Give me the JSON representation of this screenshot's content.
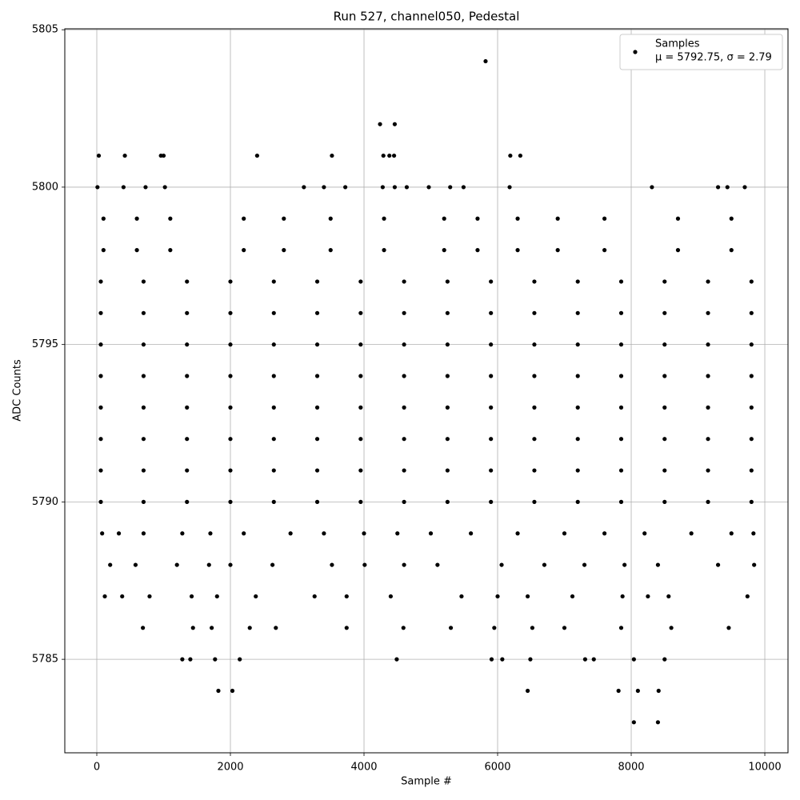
{
  "chart_data": {
    "type": "scatter",
    "title": "Run 527, channel050, Pedestal",
    "x_label": "Sample #",
    "y_label": "ADC Counts",
    "xlim": [
      -479,
      10347
    ],
    "ylim": [
      5782.03,
      5805.03
    ],
    "xticks": [
      0,
      2000,
      4000,
      6000,
      8000,
      10000
    ],
    "yticks": [
      5785,
      5790,
      5795,
      5800,
      5805
    ],
    "grid": true,
    "legend_position": "upper right",
    "legend_stats": "μ = 5792.75, σ = 2.79",
    "x": [
      5820,
      4240,
      4460,
      30,
      420,
      960,
      1000,
      2400,
      3520,
      4290,
      4380,
      4450,
      6190,
      6340,
      10,
      400,
      730,
      1020,
      3100,
      3400,
      3720,
      4280,
      4460,
      4640,
      4970,
      5290,
      5490,
      6180,
      8310,
      9300,
      9440,
      9700,
      100,
      600,
      1100,
      2200,
      2800,
      3500,
      4300,
      5200,
      5700,
      6300,
      6900,
      7600,
      8700,
      9500,
      100,
      600,
      1100,
      2200,
      2800,
      3500,
      4300,
      5200,
      5700,
      6300,
      6900,
      7600,
      8700,
      9500,
      60,
      700,
      1350,
      2000,
      2650,
      3300,
      3950,
      4600,
      5250,
      5900,
      6550,
      7200,
      7850,
      8500,
      9150,
      9800,
      60,
      700,
      1350,
      2000,
      2650,
      3300,
      3950,
      4600,
      5250,
      5900,
      6550,
      7200,
      7850,
      8500,
      9150,
      9800,
      60,
      700,
      1350,
      2000,
      2650,
      3300,
      3950,
      4600,
      5250,
      5900,
      6550,
      7200,
      7850,
      8500,
      9150,
      9800,
      60,
      700,
      1350,
      2000,
      2650,
      3300,
      3950,
      4600,
      5250,
      5900,
      6550,
      7200,
      7850,
      8500,
      9150,
      9800,
      60,
      700,
      1350,
      2000,
      2650,
      3300,
      3950,
      4600,
      5250,
      5900,
      6550,
      7200,
      7850,
      8500,
      9150,
      9800,
      60,
      700,
      1350,
      2000,
      2650,
      3300,
      3950,
      4600,
      5250,
      5900,
      6550,
      7200,
      7850,
      8500,
      9150,
      9800,
      60,
      700,
      1350,
      2000,
      2650,
      3300,
      3950,
      4600,
      5250,
      5900,
      6550,
      7200,
      7850,
      8500,
      9150,
      9800,
      60,
      700,
      1350,
      2000,
      2650,
      3300,
      3950,
      4600,
      5250,
      5900,
      6550,
      7200,
      7850,
      8500,
      9150,
      9800,
      80,
      330,
      700,
      1280,
      1700,
      2200,
      2900,
      3400,
      4000,
      4500,
      5000,
      5600,
      6300,
      7000,
      7600,
      8200,
      8900,
      9500,
      9830,
      200,
      580,
      1200,
      1680,
      2000,
      2630,
      3520,
      4010,
      4600,
      5100,
      6060,
      6700,
      7300,
      7900,
      8400,
      9300,
      9840,
      120,
      380,
      790,
      1420,
      1800,
      2380,
      3260,
      3740,
      4400,
      5460,
      6000,
      6450,
      7120,
      7870,
      8250,
      8560,
      9740,
      690,
      1440,
      1720,
      2290,
      2680,
      3740,
      4590,
      5300,
      5950,
      6520,
      7000,
      7850,
      8600,
      9460,
      1280,
      1400,
      1770,
      2140,
      4490,
      5910,
      6070,
      6490,
      7310,
      7440,
      8040,
      8500,
      1820,
      2030,
      6450,
      7810,
      8100,
      8410,
      8040,
      8400
    ],
    "series": [
      {
        "name": "Samples",
        "color": "#000000",
        "values": [
          5804,
          5802,
          5802,
          5801,
          5801,
          5801,
          5801,
          5801,
          5801,
          5801,
          5801,
          5801,
          5801,
          5801,
          5800,
          5800,
          5800,
          5800,
          5800,
          5800,
          5800,
          5800,
          5800,
          5800,
          5800,
          5800,
          5800,
          5800,
          5800,
          5800,
          5800,
          5800,
          5799,
          5799,
          5799,
          5799,
          5799,
          5799,
          5799,
          5799,
          5799,
          5799,
          5799,
          5799,
          5799,
          5799,
          5798,
          5798,
          5798,
          5798,
          5798,
          5798,
          5798,
          5798,
          5798,
          5798,
          5798,
          5798,
          5798,
          5798,
          5797,
          5797,
          5797,
          5797,
          5797,
          5797,
          5797,
          5797,
          5797,
          5797,
          5797,
          5797,
          5797,
          5797,
          5797,
          5797,
          5796,
          5796,
          5796,
          5796,
          5796,
          5796,
          5796,
          5796,
          5796,
          5796,
          5796,
          5796,
          5796,
          5796,
          5796,
          5796,
          5795,
          5795,
          5795,
          5795,
          5795,
          5795,
          5795,
          5795,
          5795,
          5795,
          5795,
          5795,
          5795,
          5795,
          5795,
          5795,
          5794,
          5794,
          5794,
          5794,
          5794,
          5794,
          5794,
          5794,
          5794,
          5794,
          5794,
          5794,
          5794,
          5794,
          5794,
          5794,
          5793,
          5793,
          5793,
          5793,
          5793,
          5793,
          5793,
          5793,
          5793,
          5793,
          5793,
          5793,
          5793,
          5793,
          5793,
          5793,
          5792,
          5792,
          5792,
          5792,
          5792,
          5792,
          5792,
          5792,
          5792,
          5792,
          5792,
          5792,
          5792,
          5792,
          5792,
          5792,
          5791,
          5791,
          5791,
          5791,
          5791,
          5791,
          5791,
          5791,
          5791,
          5791,
          5791,
          5791,
          5791,
          5791,
          5791,
          5791,
          5790,
          5790,
          5790,
          5790,
          5790,
          5790,
          5790,
          5790,
          5790,
          5790,
          5790,
          5790,
          5790,
          5790,
          5790,
          5790,
          5789,
          5789,
          5789,
          5789,
          5789,
          5789,
          5789,
          5789,
          5789,
          5789,
          5789,
          5789,
          5789,
          5789,
          5789,
          5789,
          5789,
          5789,
          5789,
          5788,
          5788,
          5788,
          5788,
          5788,
          5788,
          5788,
          5788,
          5788,
          5788,
          5788,
          5788,
          5788,
          5788,
          5788,
          5788,
          5788,
          5787,
          5787,
          5787,
          5787,
          5787,
          5787,
          5787,
          5787,
          5787,
          5787,
          5787,
          5787,
          5787,
          5787,
          5787,
          5787,
          5787,
          5786,
          5786,
          5786,
          5786,
          5786,
          5786,
          5786,
          5786,
          5786,
          5786,
          5786,
          5786,
          5786,
          5786,
          5785,
          5785,
          5785,
          5785,
          5785,
          5785,
          5785,
          5785,
          5785,
          5785,
          5785,
          5785,
          5784,
          5784,
          5784,
          5784,
          5784,
          5784,
          5783,
          5783
        ]
      }
    ]
  }
}
